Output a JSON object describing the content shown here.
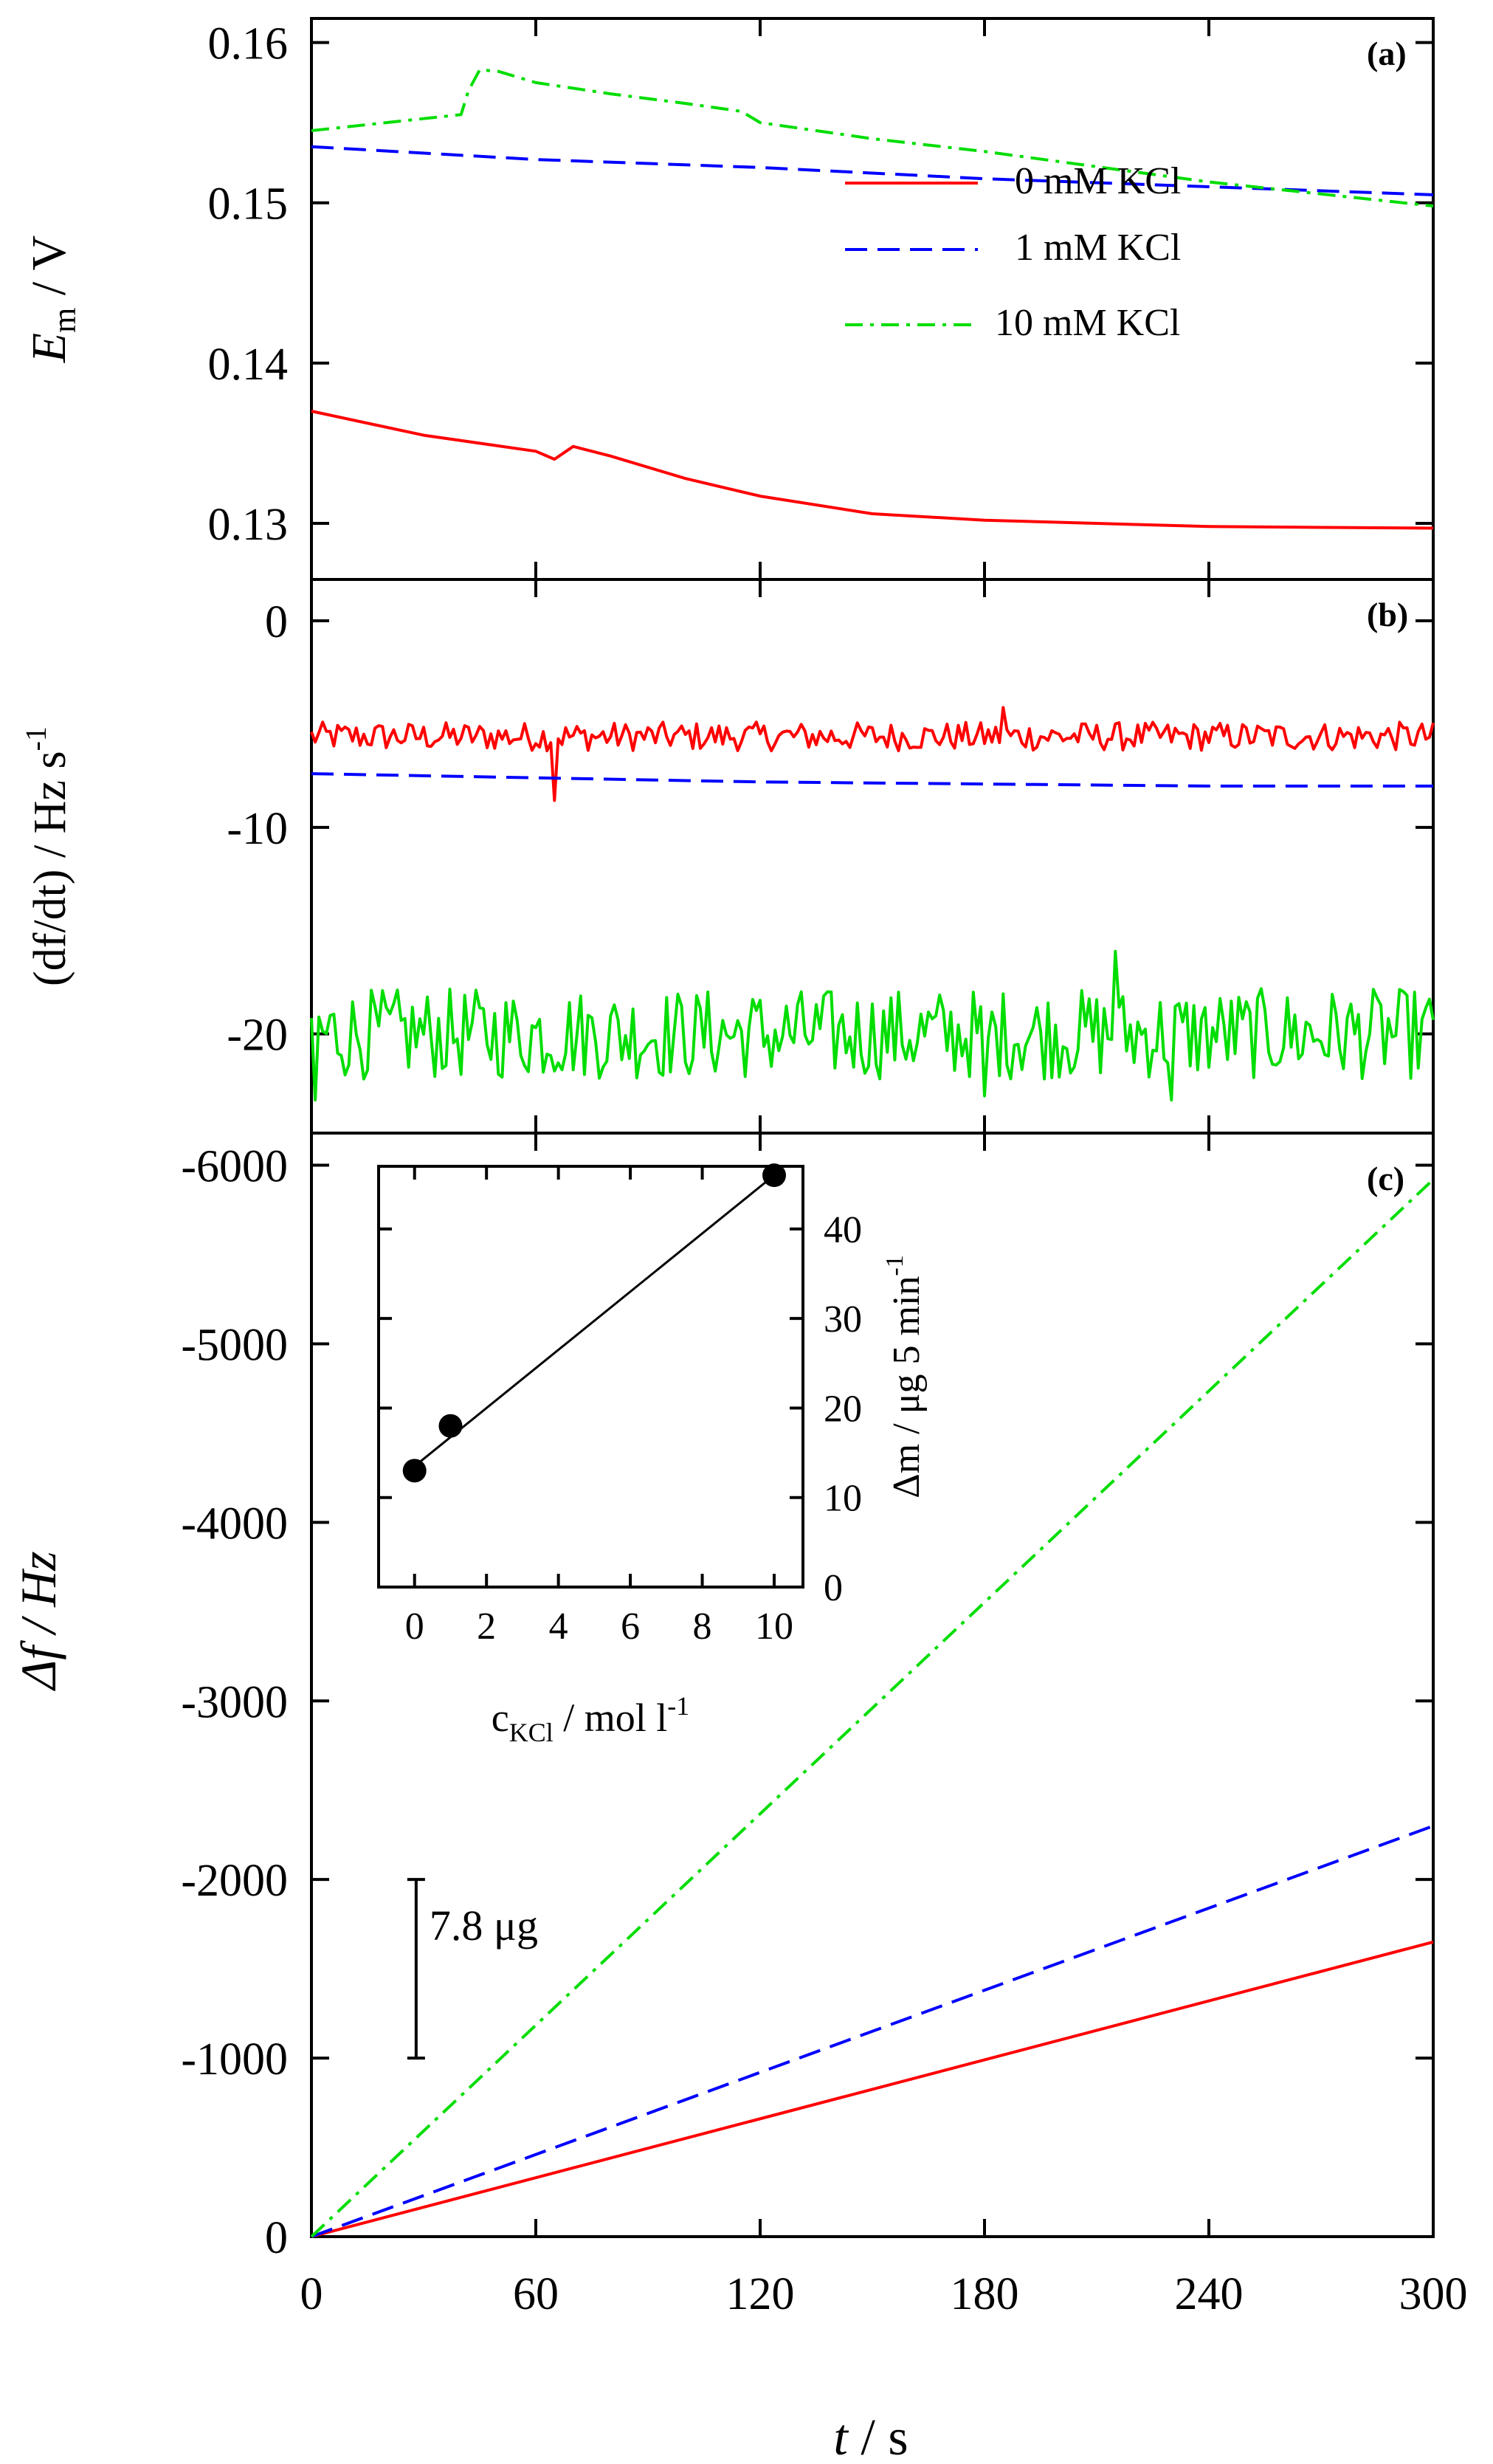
{
  "chart_data": [
    {
      "id": "a",
      "panel_label": "(a)",
      "type": "line",
      "ylabel_main": "E",
      "ylabel_sub": "m",
      "ylabel_unit": " / V",
      "y_reversed": true,
      "ylim": [
        0.1265,
        0.1615
      ],
      "yticks": [
        "0.13",
        "0.14",
        "0.15",
        "0.16"
      ],
      "xlim": [
        0,
        300
      ],
      "series": [
        {
          "name": "0 mM KCl",
          "color": "#ff0000",
          "dash": "solid",
          "x": [
            0,
            30,
            60,
            65,
            70,
            80,
            100,
            120,
            150,
            180,
            240,
            300
          ],
          "y": [
            0.137,
            0.1355,
            0.1345,
            0.134,
            0.1348,
            0.1342,
            0.1328,
            0.1317,
            0.1306,
            0.1302,
            0.1298,
            0.1297
          ]
        },
        {
          "name": "1 mM KCl",
          "color": "#0000ff",
          "dash": "dashed",
          "x": [
            0,
            60,
            120,
            180,
            240,
            300
          ],
          "y": [
            0.1535,
            0.1527,
            0.1522,
            0.1515,
            0.151,
            0.1505
          ]
        },
        {
          "name": "10 mM KCl",
          "color": "#00dd00",
          "dash": "dashdot",
          "x": [
            0,
            20,
            40,
            42,
            45,
            50,
            60,
            80,
            100,
            115,
            120,
            150,
            180,
            240,
            300
          ],
          "y": [
            0.1545,
            0.155,
            0.1555,
            0.157,
            0.1583,
            0.1582,
            0.1575,
            0.1568,
            0.1562,
            0.1557,
            0.155,
            0.154,
            0.1532,
            0.1513,
            0.1498
          ]
        }
      ],
      "legend": [
        "0 mM KCl",
        "1 mM KCl",
        "10 mM KCl"
      ]
    },
    {
      "id": "b",
      "panel_label": "(b)",
      "type": "line",
      "ylabel": "(df/dt) / Hz s",
      "ylabel_sup": "-1",
      "ylim": [
        -24.8,
        2.0
      ],
      "yticks": [
        "0",
        "-10",
        "-20"
      ],
      "ytick_values": [
        0,
        -10,
        -20
      ],
      "xlim": [
        0,
        300
      ],
      "series": [
        {
          "name": "0 mM KCl",
          "color": "#ff0000",
          "dash": "solid",
          "noisy": true,
          "mean": -5.6,
          "amplitude": 0.7,
          "spikes": [
            {
              "x": 65,
              "y": -8.7
            },
            {
              "x": 185,
              "y": -4.2
            }
          ]
        },
        {
          "name": "1 mM KCl",
          "color": "#0000ff",
          "dash": "dashed",
          "noisy": false,
          "x": [
            0,
            60,
            120,
            180,
            240,
            300
          ],
          "y": [
            -7.4,
            -7.6,
            -7.8,
            -7.9,
            -8.0,
            -8.0
          ]
        },
        {
          "name": "10 mM KCl",
          "color": "#00dd00",
          "dash": "solid",
          "noisy": true,
          "mean": -20.0,
          "amplitude": 2.2,
          "spikes": [
            {
              "x": 1,
              "y": -23.2
            },
            {
              "x": 180,
              "y": -23.0
            },
            {
              "x": 230,
              "y": -23.2
            },
            {
              "x": 215,
              "y": -16.0
            }
          ]
        }
      ]
    },
    {
      "id": "c",
      "panel_label": "(c)",
      "type": "line",
      "ylabel": "Δf / Hz",
      "y_reversed": true,
      "ylim": [
        0,
        -6180
      ],
      "yticks": [
        "0",
        "-1000",
        "-2000",
        "-3000",
        "-4000",
        "-5000",
        "-6000"
      ],
      "ytick_values": [
        0,
        -1000,
        -2000,
        -3000,
        -4000,
        -5000,
        -6000
      ],
      "xlim": [
        0,
        300
      ],
      "xticks": [
        "0",
        "60",
        "120",
        "180",
        "240",
        "300"
      ],
      "xlabel": "t",
      "xlabel_unit": " / s",
      "series": [
        {
          "name": "0 mM KCl",
          "color": "#ff0000",
          "dash": "solid",
          "x": [
            0,
            300
          ],
          "y": [
            0,
            -1650
          ]
        },
        {
          "name": "1 mM KCl",
          "color": "#0000ff",
          "dash": "dashed",
          "x": [
            0,
            300
          ],
          "y": [
            0,
            -2300
          ]
        },
        {
          "name": "10 mM KCl",
          "color": "#00dd00",
          "dash": "dashdot",
          "x": [
            0,
            300
          ],
          "y": [
            0,
            -5920
          ]
        }
      ],
      "scale_bar": {
        "label": "7.8 μg",
        "from": -1000,
        "to": -2000,
        "x": 28
      }
    },
    {
      "id": "inset",
      "type": "scatter",
      "xlim": [
        -1,
        10.8
      ],
      "ylim": [
        0,
        47
      ],
      "xticks": [
        "0",
        "2",
        "4",
        "6",
        "8",
        "10"
      ],
      "xtick_values": [
        0,
        2,
        4,
        6,
        8,
        10
      ],
      "yticks": [
        "0",
        "10",
        "20",
        "30",
        "40"
      ],
      "ytick_values": [
        0,
        10,
        20,
        30,
        40
      ],
      "xlabel": "c",
      "xlabel_sub": "KCl",
      "xlabel_unit": " / mol l",
      "xlabel_sup": "-1",
      "ylabel": "Δm / μg 5 min",
      "ylabel_sup": "-1",
      "points": {
        "x": [
          0,
          1,
          10
        ],
        "y": [
          13,
          18,
          46
        ]
      },
      "fit_line": {
        "x": [
          0,
          10
        ],
        "y": [
          13.5,
          46
        ]
      }
    }
  ]
}
